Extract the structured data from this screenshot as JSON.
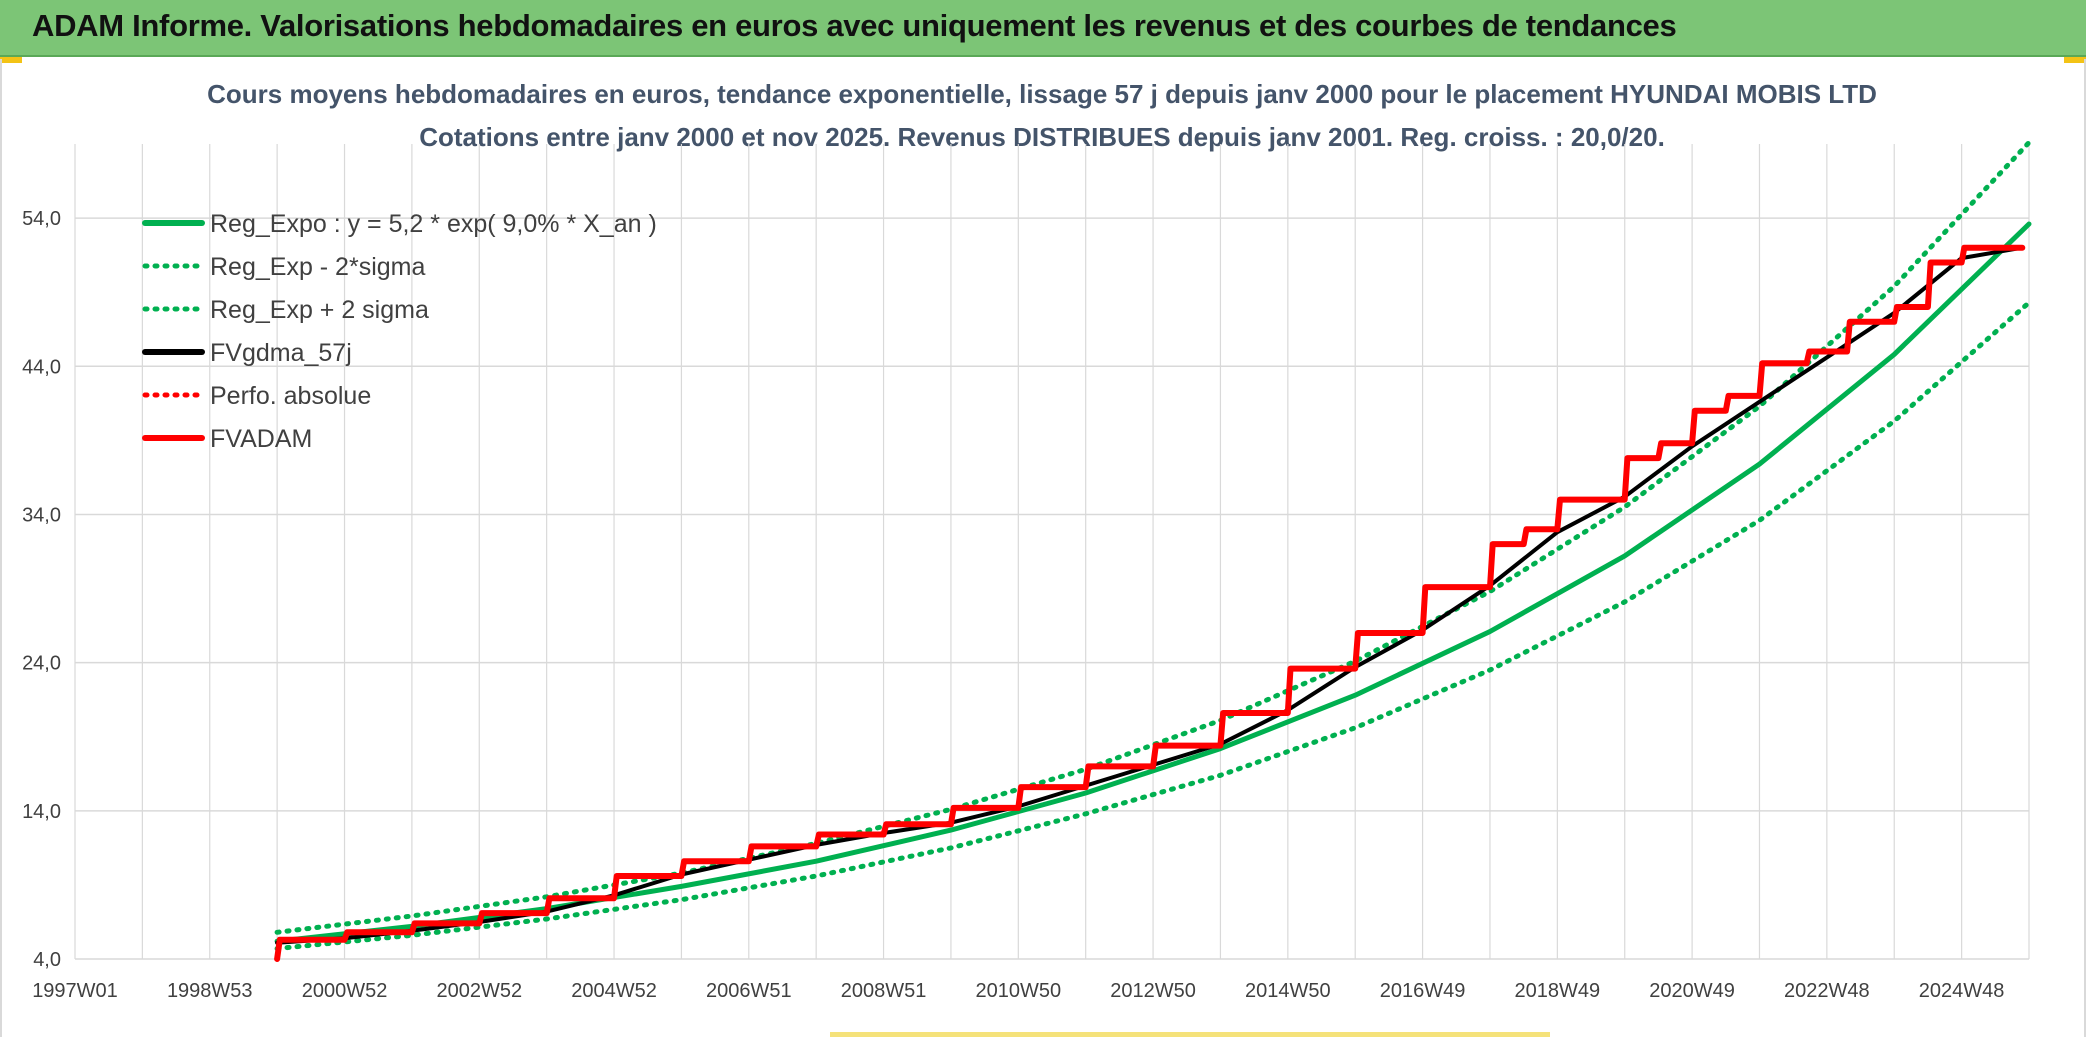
{
  "header": {
    "title": "ADAM Informe. Valorisations hebdomadaires en euros avec uniquement les revenus et des courbes de tendances"
  },
  "colors": {
    "header_bg": "#7cc576",
    "green": "#00b050",
    "red": "#ff0000",
    "black": "#000000",
    "title_text": "#44546a",
    "grid": "#d9d9d9"
  },
  "chart_data": {
    "type": "line",
    "title_line1": "Cours moyens hebdomadaires en euros, tendance exponentielle, lissage 57 j depuis janv 2000 pour le placement HYUNDAI MOBIS LTD",
    "title_line2": "Cotations entre janv 2000 et nov 2025. Revenus DISTRIBUES depuis janv 2001. Reg. croiss. : 20,0/20.",
    "x_tick_labels": [
      "1997W01",
      "1998W53",
      "2000W52",
      "2002W52",
      "2004W52",
      "2006W51",
      "2008W51",
      "2010W50",
      "2012W50",
      "2014W50",
      "2016W49",
      "2018W49",
      "2020W49",
      "2022W48",
      "2024W48"
    ],
    "x_range": [
      1997.0,
      2026.0
    ],
    "y_tick_labels": [
      "4,0",
      "14,0",
      "24,0",
      "34,0",
      "44,0",
      "54,0"
    ],
    "y_range": [
      4.0,
      59.0
    ],
    "grid": true,
    "legend_position": "top-left",
    "legend": [
      {
        "label": "Reg_Expo : y = 5,2 * exp( 9,0% *  X_an )",
        "color": "#00b050",
        "style": "solid"
      },
      {
        "label": "Reg_Exp - 2*sigma",
        "color": "#00b050",
        "style": "dotted"
      },
      {
        "label": "Reg_Exp + 2 sigma",
        "color": "#00b050",
        "style": "dotted"
      },
      {
        "label": "FVgdma_57j",
        "color": "#000000",
        "style": "solid"
      },
      {
        "label": "Perfo. absolue",
        "color": "#ff0000",
        "style": "dotted"
      },
      {
        "label": "FVADAM",
        "color": "#ff0000",
        "style": "solid"
      }
    ],
    "series": [
      {
        "name": "Reg_Expo : y = 5,2 * exp( 9,0% *  X_an )",
        "x": [
          2000.0,
          2002.0,
          2004.0,
          2006.0,
          2008.0,
          2010.0,
          2012.0,
          2014.0,
          2016.0,
          2018.0,
          2020.0,
          2022.0,
          2024.0,
          2026.0
        ],
        "values": [
          5.2,
          6.2,
          7.4,
          8.9,
          10.6,
          12.7,
          15.2,
          18.2,
          21.8,
          26.1,
          31.2,
          37.4,
          44.8,
          53.6
        ]
      },
      {
        "name": "Reg_Exp - 2*sigma",
        "x": [
          2000.0,
          2002.0,
          2004.0,
          2006.0,
          2008.0,
          2010.0,
          2012.0,
          2014.0,
          2016.0,
          2018.0,
          2020.0,
          2022.0,
          2024.0,
          2026.0
        ],
        "values": [
          4.7,
          5.6,
          6.7,
          8.0,
          9.6,
          11.5,
          13.8,
          16.4,
          19.6,
          23.5,
          28.1,
          33.6,
          40.3,
          48.3
        ]
      },
      {
        "name": "Reg_Exp + 2 sigma",
        "x": [
          2000.0,
          2002.0,
          2004.0,
          2006.0,
          2008.0,
          2010.0,
          2012.0,
          2014.0,
          2016.0,
          2018.0,
          2020.0,
          2022.0,
          2024.0,
          2026.0
        ],
        "values": [
          5.8,
          6.9,
          8.2,
          9.8,
          11.8,
          14.1,
          16.8,
          20.1,
          24.1,
          28.8,
          34.5,
          41.3,
          49.4,
          59.1
        ]
      },
      {
        "name": "FVADAM",
        "x": [
          2000.0,
          2000.04,
          2001.0,
          2001.04,
          2002.0,
          2002.04,
          2003.0,
          2003.04,
          2004.0,
          2004.04,
          2005.0,
          2005.04,
          2006.0,
          2006.04,
          2007.0,
          2007.04,
          2008.0,
          2008.04,
          2009.0,
          2009.04,
          2010.0,
          2010.04,
          2011.0,
          2011.04,
          2012.0,
          2012.04,
          2013.0,
          2013.04,
          2014.0,
          2014.04,
          2015.0,
          2015.04,
          2016.0,
          2016.04,
          2017.0,
          2017.04,
          2018.0,
          2018.04,
          2018.5,
          2018.54,
          2019.0,
          2019.04,
          2020.0,
          2020.04,
          2020.5,
          2020.54,
          2021.0,
          2021.04,
          2021.5,
          2021.54,
          2022.0,
          2022.04,
          2022.7,
          2022.74,
          2023.3,
          2023.34,
          2024.0,
          2024.04,
          2024.5,
          2024.54,
          2025.0,
          2025.04,
          2025.9
        ],
        "values": [
          4.0,
          5.3,
          5.3,
          5.8,
          5.8,
          6.4,
          6.4,
          7.1,
          7.1,
          8.1,
          8.1,
          9.6,
          9.6,
          10.6,
          10.6,
          11.6,
          11.6,
          12.4,
          12.4,
          13.1,
          13.1,
          14.2,
          14.2,
          15.6,
          15.6,
          17.0,
          17.0,
          18.4,
          18.4,
          20.6,
          20.6,
          23.6,
          23.6,
          26.0,
          26.0,
          29.1,
          29.1,
          32.0,
          32.0,
          33.0,
          33.0,
          35.0,
          35.0,
          37.8,
          37.8,
          38.8,
          38.8,
          41.0,
          41.0,
          42.0,
          42.0,
          44.2,
          44.2,
          45.0,
          45.0,
          47.0,
          47.0,
          48.0,
          48.0,
          51.0,
          51.0,
          52.0,
          52.0
        ]
      },
      {
        "name": "FVgdma_57j",
        "x": [
          2000.0,
          2001.0,
          2002.0,
          2003.0,
          2004.0,
          2005.0,
          2006.0,
          2007.0,
          2008.0,
          2009.0,
          2010.0,
          2011.0,
          2012.0,
          2013.0,
          2014.0,
          2015.0,
          2016.0,
          2017.0,
          2018.0,
          2019.0,
          2020.0,
          2021.0,
          2022.0,
          2023.0,
          2024.0,
          2025.0,
          2025.9
        ],
        "values": [
          5.1,
          5.4,
          5.9,
          6.5,
          7.2,
          8.3,
          9.7,
          10.7,
          11.7,
          12.5,
          13.2,
          14.3,
          15.7,
          17.1,
          18.5,
          20.8,
          23.7,
          26.2,
          29.2,
          32.8,
          35.2,
          38.6,
          41.6,
          44.6,
          47.6,
          51.3,
          52.0
        ]
      }
    ]
  }
}
